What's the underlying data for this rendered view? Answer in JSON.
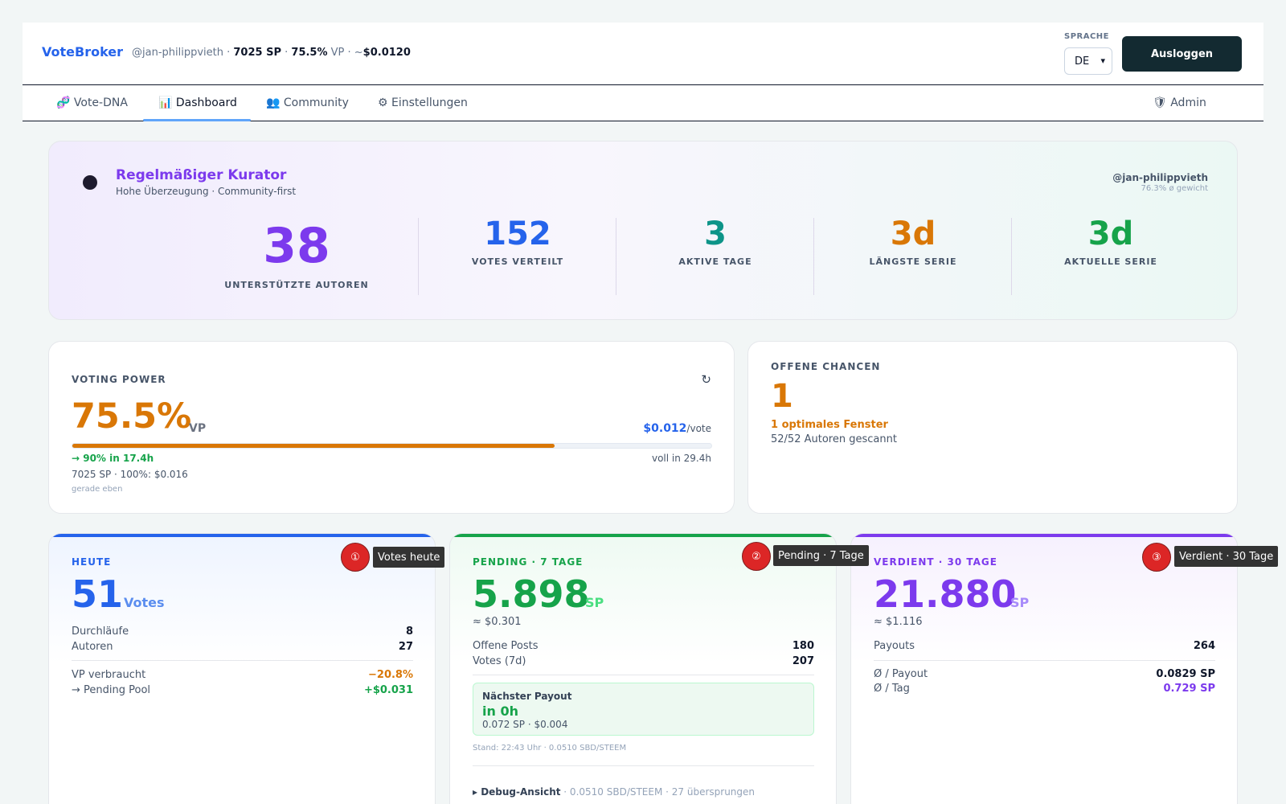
{
  "header": {
    "brand": "VoteBroker",
    "user_handle": "@jan-philippvieth",
    "sep1": " · ",
    "sp": "7025 SP",
    "sep2": " · ",
    "vp": "75.5%",
    "vp_suffix": " VP · ~",
    "vote_value": "$0.0120",
    "language_label": "SPRACHE",
    "language_value": "DE",
    "logout_label": "Ausloggen"
  },
  "nav": {
    "items": [
      {
        "icon": "dna-icon",
        "label": "🧬 Vote-DNA"
      },
      {
        "icon": "chart-icon",
        "label": "📊 Dashboard"
      },
      {
        "icon": "people-icon",
        "label": "👥 Community"
      },
      {
        "icon": "gear-icon",
        "label": "⚙ Einstellungen"
      }
    ],
    "admin_label": "🛡 Admin",
    "active": "Dashboard"
  },
  "hero": {
    "title": "Regelmäßiger Kurator",
    "subtitle": "Hohe Überzeugung · Community-first",
    "user": "@jan-philippvieth",
    "weight": "76.3% ø gewicht",
    "stats": [
      {
        "value": "38",
        "label": "UNTERSTÜTZTE AUTOREN",
        "color": "#7c3aed"
      },
      {
        "value": "152",
        "label": "VOTES VERTEILT",
        "color": "#2563eb"
      },
      {
        "value": "3",
        "label": "AKTIVE TAGE",
        "color": "#0d9488"
      },
      {
        "value": "3d",
        "label": "LÄNGSTE SERIE",
        "color": "#d97706"
      },
      {
        "value": "3d",
        "label": "AKTUELLE SERIE",
        "color": "#16a34a"
      }
    ]
  },
  "voting_power": {
    "label": "VOTING POWER",
    "refresh_icon": "↻",
    "value": "75.5%",
    "unit": "VP",
    "fill_percent": 75.5,
    "per_vote_value": "$0.012",
    "per_vote_suffix": "/vote",
    "next_threshold": "→ 90% in 17.4h",
    "full_in": "voll in 29.4h",
    "meta": "7025 SP · 100%: $0.016",
    "updated": "gerade eben"
  },
  "chances": {
    "label": "OFFENE CHANCEN",
    "value": "1",
    "window": "1 optimales Fenster",
    "scanned": "52/52 Autoren gescannt"
  },
  "today": {
    "label": "HEUTE",
    "value": "51",
    "unit": "Votes",
    "rows": [
      {
        "label": "Durchläufe",
        "value": "8"
      },
      {
        "label": "Autoren",
        "value": "27"
      }
    ],
    "rows2": [
      {
        "label": "VP verbraucht",
        "value": "−20.8%",
        "color": "#d97706"
      },
      {
        "label": "→ Pending Pool",
        "value": "+$0.031",
        "color": "#16a34a"
      }
    ],
    "badge": "①",
    "tooltip": "Votes heute",
    "accent": "#2563eb"
  },
  "pending": {
    "label": "PENDING · 7 TAGE",
    "value": "5.898",
    "unit": "SP",
    "approx": "≈ $0.301",
    "rows": [
      {
        "label": "Offene Posts",
        "value": "180"
      },
      {
        "label": "Votes (7d)",
        "value": "207"
      }
    ],
    "payout_title": "Nächster Payout",
    "payout_when": "in 0h",
    "payout_amount": "0.072 SP · $0.004",
    "stand": "Stand: 22:43 Uhr · 0.0510 SBD/STEEM",
    "debug_toggle": "▸ Debug-Ansicht",
    "debug_info": " · 0.0510 SBD/STEEM · 27 übersprungen",
    "badge": "②",
    "tooltip": "Pending · 7 Tage",
    "accent": "#16a34a"
  },
  "earned": {
    "label": "VERDIENT · 30 TAGE",
    "value": "21.880",
    "unit": "SP",
    "approx": "≈ $1.116",
    "rows": [
      {
        "label": "Payouts",
        "value": "264"
      }
    ],
    "rows2": [
      {
        "label": "Ø / Payout",
        "value": "0.0829 SP",
        "color": "#0f172a"
      },
      {
        "label": "Ø / Tag",
        "value": "0.729 SP",
        "color": "#7c3aed"
      }
    ],
    "badge": "③",
    "tooltip": "Verdient · 30 Tage",
    "accent": "#7c3aed"
  }
}
